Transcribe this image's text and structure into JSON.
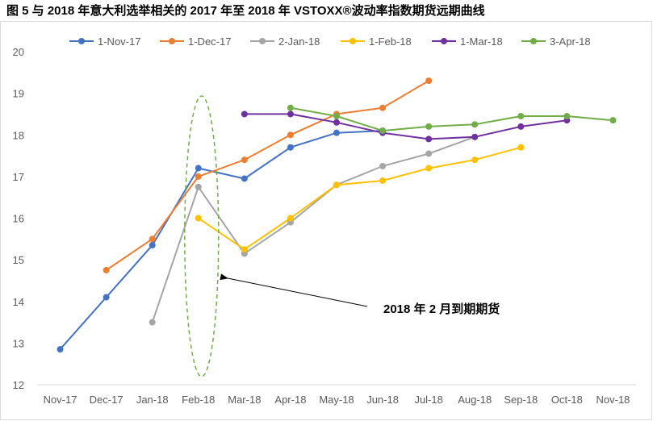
{
  "figure": {
    "title": "图 5 与 2018 年意大利选举相关的 2017 年至 2018 年 VSTOXX®波动率指数期货远期曲线"
  },
  "chart_data": {
    "type": "line",
    "x": [
      "Nov-17",
      "Dec-17",
      "Jan-18",
      "Feb-18",
      "Mar-18",
      "Apr-18",
      "May-18",
      "Jun-18",
      "Jul-18",
      "Aug-18",
      "Sep-18",
      "Oct-18",
      "Nov-18"
    ],
    "xlabel": "",
    "ylabel": "",
    "ylim": [
      12,
      20
    ],
    "yticks": [
      "12",
      "13",
      "14",
      "15",
      "16",
      "17",
      "18",
      "19",
      "20"
    ],
    "grid": false,
    "legend_position": "top",
    "series": [
      {
        "name": "1-Nov-17",
        "color": "#4472c4",
        "values": [
          12.85,
          14.1,
          15.35,
          17.2,
          16.95,
          17.7,
          18.05,
          18.1,
          null,
          null,
          null,
          null,
          null
        ]
      },
      {
        "name": "1-Dec-17",
        "color": "#ed7d31",
        "values": [
          null,
          14.75,
          15.5,
          17.0,
          17.4,
          18.0,
          18.5,
          18.65,
          19.3,
          null,
          null,
          null,
          null
        ]
      },
      {
        "name": "2-Jan-18",
        "color": "#a5a5a5",
        "values": [
          null,
          null,
          13.5,
          16.75,
          15.15,
          15.9,
          16.8,
          17.25,
          17.55,
          17.95,
          null,
          null,
          null
        ]
      },
      {
        "name": "1-Feb-18",
        "color": "#ffc000",
        "values": [
          null,
          null,
          null,
          16.0,
          15.25,
          16.0,
          16.8,
          16.9,
          17.2,
          17.4,
          17.7,
          null,
          null
        ]
      },
      {
        "name": "1-Mar-18",
        "color": "#7030a0",
        "values": [
          null,
          null,
          null,
          null,
          18.5,
          18.5,
          18.3,
          18.05,
          17.9,
          17.95,
          18.2,
          18.35,
          null
        ]
      },
      {
        "name": "3-Apr-18",
        "color": "#70ad47",
        "values": [
          null,
          null,
          null,
          null,
          null,
          18.65,
          18.45,
          18.1,
          18.2,
          18.25,
          18.45,
          18.45,
          18.35
        ]
      }
    ],
    "annotation": {
      "text": "2018 年 2 月到期期货",
      "highlight_category": "Feb-18",
      "highlight_color": "#70ad47"
    }
  }
}
